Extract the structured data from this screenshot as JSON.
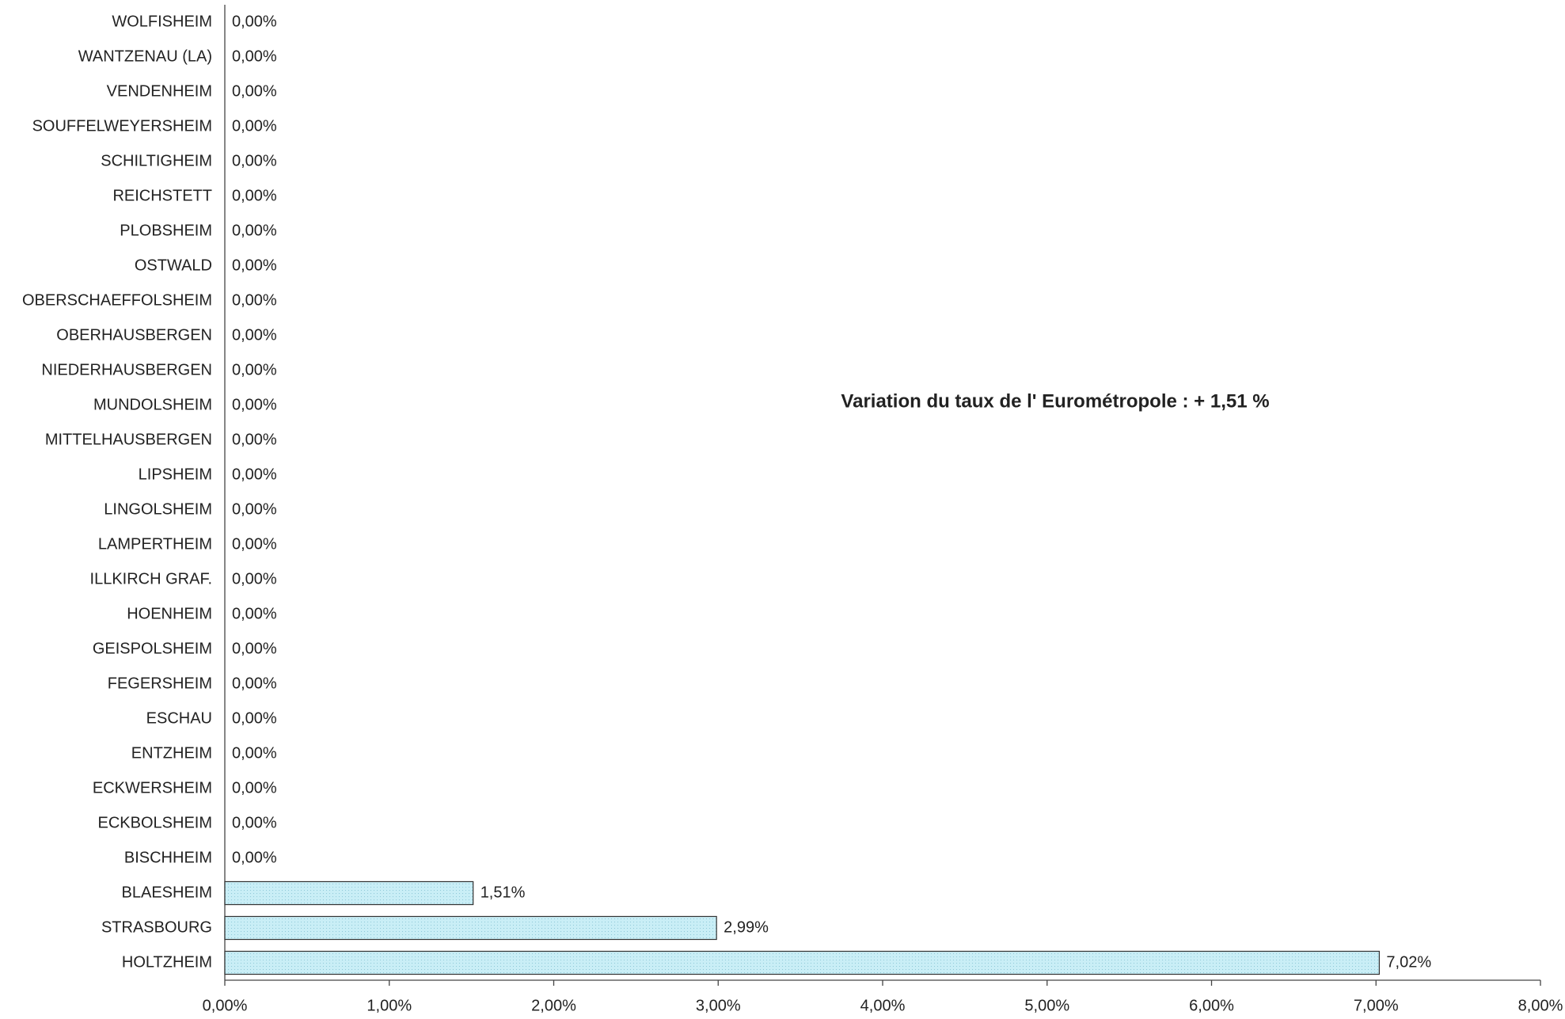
{
  "chart_data": {
    "type": "bar",
    "orientation": "horizontal",
    "annotation": "Variation du taux de l' Eurométropole :  + 1,51 %",
    "categories": [
      "WOLFISHEIM",
      "WANTZENAU (LA)",
      "VENDENHEIM",
      "SOUFFELWEYERSHEIM",
      "SCHILTIGHEIM",
      "REICHSTETT",
      "PLOBSHEIM",
      "OSTWALD",
      "OBERSCHAEFFOLSHEIM",
      "OBERHAUSBERGEN",
      "NIEDERHAUSBERGEN",
      "MUNDOLSHEIM",
      "MITTELHAUSBERGEN",
      "LIPSHEIM",
      "LINGOLSHEIM",
      "LAMPERTHEIM",
      "ILLKIRCH GRAF.",
      "HOENHEIM",
      "GEISPOLSHEIM",
      "FEGERSHEIM",
      "ESCHAU",
      "ENTZHEIM",
      "ECKWERSHEIM",
      "ECKBOLSHEIM",
      "BISCHHEIM",
      "BLAESHEIM",
      "STRASBOURG",
      "HOLTZHEIM"
    ],
    "values": [
      0,
      0,
      0,
      0,
      0,
      0,
      0,
      0,
      0,
      0,
      0,
      0,
      0,
      0,
      0,
      0,
      0,
      0,
      0,
      0,
      0,
      0,
      0,
      0,
      0,
      1.51,
      2.99,
      7.02
    ],
    "value_labels": [
      "0,00%",
      "0,00%",
      "0,00%",
      "0,00%",
      "0,00%",
      "0,00%",
      "0,00%",
      "0,00%",
      "0,00%",
      "0,00%",
      "0,00%",
      "0,00%",
      "0,00%",
      "0,00%",
      "0,00%",
      "0,00%",
      "0,00%",
      "0,00%",
      "0,00%",
      "0,00%",
      "0,00%",
      "0,00%",
      "0,00%",
      "0,00%",
      "0,00%",
      "1,51%",
      "2,99%",
      "7,02%"
    ],
    "color": "#c9eef6",
    "xlim": [
      0,
      8
    ],
    "xticks": [
      {
        "value": 0,
        "label": "0,00%"
      },
      {
        "value": 1,
        "label": "1,00%"
      },
      {
        "value": 2,
        "label": "2,00%"
      },
      {
        "value": 3,
        "label": "3,00%"
      },
      {
        "value": 4,
        "label": "4,00%"
      },
      {
        "value": 5,
        "label": "5,00%"
      },
      {
        "value": 6,
        "label": "6,00%"
      },
      {
        "value": 7,
        "label": "7,00%"
      },
      {
        "value": 8,
        "label": "8,00%"
      }
    ]
  }
}
